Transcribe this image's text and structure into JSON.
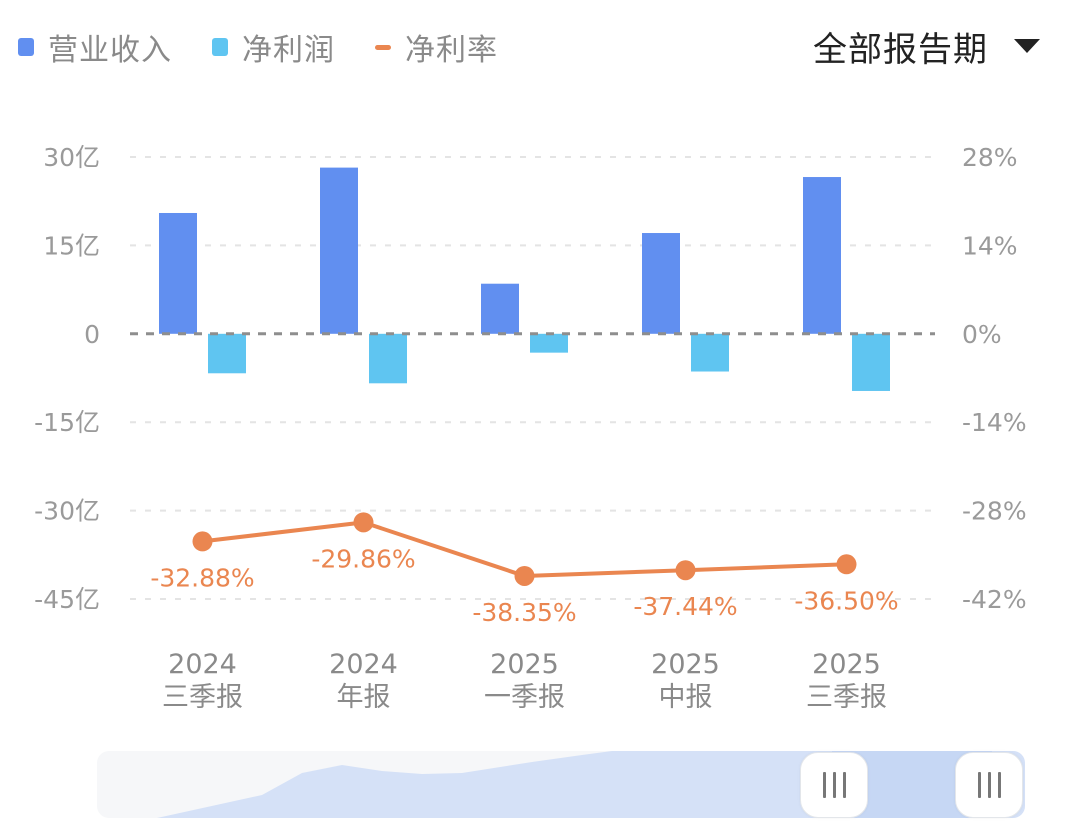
{
  "legend": {
    "items": [
      {
        "label": "营业收入",
        "color": "#618ff0",
        "type": "bar"
      },
      {
        "label": "净利润",
        "color": "#5fc5f1",
        "type": "bar"
      },
      {
        "label": "净利率",
        "color": "#ea8650",
        "type": "line"
      }
    ]
  },
  "period_select": {
    "selected": "全部报告期",
    "icon": "caret-down-icon"
  },
  "chart_data": {
    "type": "bar+line",
    "categories": [
      "2024 三季报",
      "2024 年报",
      "2025 一季报",
      "2025 中报",
      "2025 三季报"
    ],
    "category_lines": [
      [
        "2024",
        "三季报"
      ],
      [
        "2024",
        "年报"
      ],
      [
        "2025",
        "一季报"
      ],
      [
        "2025",
        "中报"
      ],
      [
        "2025",
        "三季报"
      ]
    ],
    "series": [
      {
        "name": "营业收入",
        "type": "bar",
        "axis": "left",
        "unit": "亿",
        "values": [
          20.5,
          28.2,
          8.5,
          17.1,
          26.6
        ],
        "color": "#618ff0"
      },
      {
        "name": "净利润",
        "type": "bar",
        "axis": "left",
        "unit": "亿",
        "values": [
          -6.7,
          -8.4,
          -3.2,
          -6.4,
          -9.7
        ],
        "color": "#5fc5f1"
      },
      {
        "name": "净利率",
        "type": "line",
        "axis": "right",
        "unit": "%",
        "values": [
          -32.88,
          -29.86,
          -38.35,
          -37.44,
          -36.5
        ],
        "labels": [
          "-32.88%",
          "-29.86%",
          "-38.35%",
          "-37.44%",
          "-36.50%"
        ],
        "color": "#ea8650"
      }
    ],
    "left_axis": {
      "ticks": [
        "30亿",
        "15亿",
        "0",
        "-15亿",
        "-30亿",
        "-45亿"
      ],
      "values": [
        30,
        15,
        0,
        -15,
        -30,
        -45
      ],
      "ylim": [
        -45,
        30
      ]
    },
    "right_axis": {
      "ticks": [
        "28%",
        "14%",
        "0%",
        "-14%",
        "-28%",
        "-42%"
      ],
      "values": [
        28,
        14,
        0,
        -14,
        -28,
        -42
      ],
      "ylim": [
        -42,
        28
      ]
    },
    "grid": true,
    "legend_position": "top-left",
    "title": "",
    "xlabel": "",
    "ylabel": ""
  },
  "zoom_slider": {
    "left_handle_icon": "grip-icon",
    "right_handle_icon": "grip-icon"
  }
}
